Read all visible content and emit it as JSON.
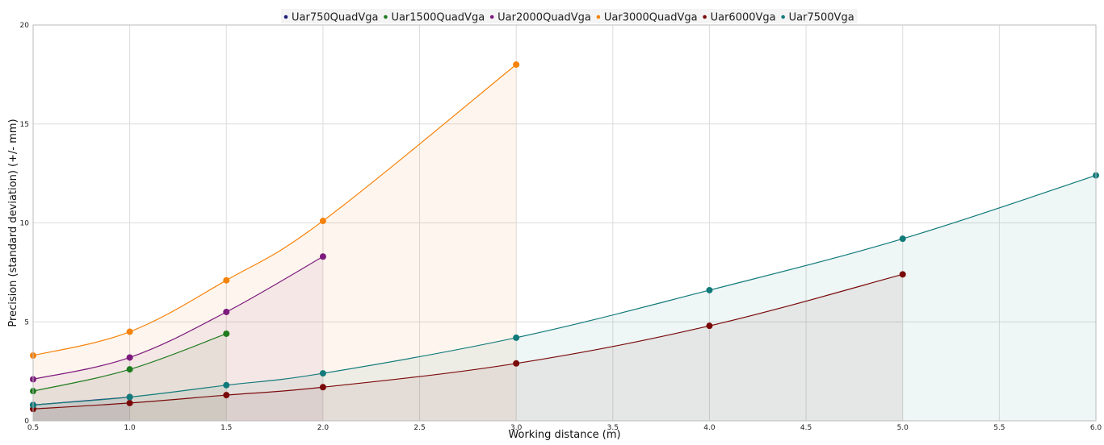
{
  "chart_data": {
    "type": "area",
    "title": "",
    "xlabel": "Working distance (m)",
    "ylabel": "Precision (standard deviation) (+/- mm)",
    "xlim": [
      0.5,
      6.0
    ],
    "ylim": [
      0,
      20
    ],
    "x_ticks": [
      "0.5",
      "1.0",
      "1.5",
      "2.0",
      "2.5",
      "3.0",
      "3.5",
      "4.0",
      "4.5",
      "5.0",
      "5.5",
      "6.0"
    ],
    "y_ticks": [
      "0",
      "5",
      "10",
      "15",
      "20"
    ],
    "grid": true,
    "legend_position": "top-center",
    "series": [
      {
        "name": "Uar750QuadVga",
        "color": "#1f1f7a",
        "x": [
          0.5,
          1.0
        ],
        "y": [
          0.8,
          1.2
        ]
      },
      {
        "name": "Uar1500QuadVga",
        "color": "#1e7b1e",
        "x": [
          0.5,
          1.0,
          1.5
        ],
        "y": [
          1.5,
          2.6,
          4.4
        ]
      },
      {
        "name": "Uar2000QuadVga",
        "color": "#7d1a7d",
        "x": [
          0.5,
          1.0,
          1.5,
          2.0
        ],
        "y": [
          2.1,
          3.2,
          5.5,
          8.3
        ]
      },
      {
        "name": "Uar3000QuadVga",
        "color": "#f5820a",
        "x": [
          0.5,
          1.0,
          1.5,
          2.0,
          3.0
        ],
        "y": [
          3.3,
          4.5,
          7.1,
          10.1,
          18.0
        ]
      },
      {
        "name": "Uar6000Vga",
        "color": "#7a0a0a",
        "x": [
          0.5,
          1.0,
          1.5,
          2.0,
          3.0,
          4.0,
          5.0
        ],
        "y": [
          0.6,
          0.9,
          1.3,
          1.7,
          2.9,
          4.8,
          7.4
        ]
      },
      {
        "name": "Uar7500Vga",
        "color": "#127a7a",
        "x": [
          0.5,
          1.0,
          1.5,
          2.0,
          3.0,
          4.0,
          5.0,
          6.0
        ],
        "y": [
          0.8,
          1.2,
          1.8,
          2.4,
          4.2,
          6.6,
          9.2,
          12.4
        ]
      }
    ]
  }
}
